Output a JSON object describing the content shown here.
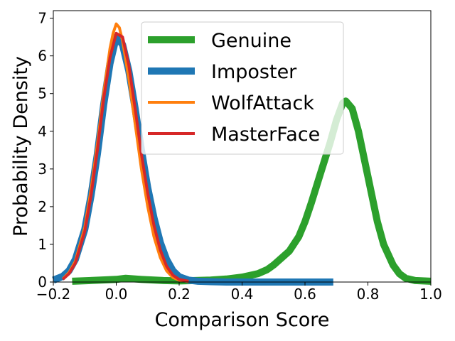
{
  "chart_data": {
    "type": "line",
    "xlabel": "Comparison Score",
    "ylabel": "Probability Density",
    "xlim": [
      -0.2,
      1.0
    ],
    "ylim": [
      0,
      7.2
    ],
    "xticks": [
      {
        "value": -0.2,
        "label": "−0.2"
      },
      {
        "value": 0.0,
        "label": "0.0"
      },
      {
        "value": 0.2,
        "label": "0.2"
      },
      {
        "value": 0.4,
        "label": "0.4"
      },
      {
        "value": 0.6,
        "label": "0.6"
      },
      {
        "value": 0.8,
        "label": "0.8"
      },
      {
        "value": 1.0,
        "label": "1.0"
      }
    ],
    "yticks": [
      {
        "value": 0,
        "label": "0"
      },
      {
        "value": 1,
        "label": "1"
      },
      {
        "value": 2,
        "label": "2"
      },
      {
        "value": 3,
        "label": "3"
      },
      {
        "value": 4,
        "label": "4"
      },
      {
        "value": 5,
        "label": "5"
      },
      {
        "value": 6,
        "label": "6"
      },
      {
        "value": 7,
        "label": "7"
      }
    ],
    "grid": false,
    "legend_position": "top-center",
    "series": [
      {
        "name": "Genuine",
        "color": "#2ca02c",
        "stroke": "thick",
        "x": [
          -0.14,
          -0.05,
          0.0,
          0.03,
          0.08,
          0.15,
          0.2,
          0.25,
          0.3,
          0.35,
          0.4,
          0.45,
          0.48,
          0.5,
          0.55,
          0.58,
          0.6,
          0.62,
          0.65,
          0.68,
          0.7,
          0.72,
          0.73,
          0.75,
          0.77,
          0.8,
          0.83,
          0.85,
          0.88,
          0.9,
          0.92,
          0.95,
          1.0
        ],
        "y": [
          0.02,
          0.05,
          0.07,
          0.1,
          0.07,
          0.04,
          0.03,
          0.04,
          0.05,
          0.08,
          0.13,
          0.22,
          0.33,
          0.45,
          0.82,
          1.2,
          1.6,
          2.1,
          2.9,
          3.7,
          4.3,
          4.75,
          4.8,
          4.6,
          4.0,
          2.8,
          1.6,
          1.0,
          0.45,
          0.22,
          0.1,
          0.04,
          0.02
        ]
      },
      {
        "name": "Imposter",
        "color": "#1f77b4",
        "stroke": "thick",
        "x": [
          -0.2,
          -0.17,
          -0.15,
          -0.13,
          -0.1,
          -0.08,
          -0.06,
          -0.04,
          -0.02,
          0.0,
          0.02,
          0.04,
          0.06,
          0.08,
          0.1,
          0.12,
          0.14,
          0.16,
          0.18,
          0.2,
          0.23,
          0.26,
          0.3,
          0.35,
          0.4,
          0.5,
          0.6,
          0.69
        ],
        "y": [
          0.05,
          0.15,
          0.3,
          0.6,
          1.4,
          2.3,
          3.4,
          4.7,
          5.8,
          6.5,
          6.3,
          5.6,
          4.6,
          3.5,
          2.5,
          1.7,
          1.05,
          0.6,
          0.3,
          0.14,
          0.05,
          0.02,
          0.01,
          0.0,
          0.0,
          0.0,
          0.0,
          0.0
        ]
      },
      {
        "name": "WolfAttack",
        "color": "#ff7f0e",
        "stroke": "thin",
        "x": [
          -0.17,
          -0.15,
          -0.13,
          -0.1,
          -0.08,
          -0.06,
          -0.04,
          -0.02,
          -0.01,
          0.0,
          0.01,
          0.02,
          0.04,
          0.06,
          0.08,
          0.1,
          0.12,
          0.14,
          0.16,
          0.18,
          0.2,
          0.23
        ],
        "y": [
          0.08,
          0.25,
          0.55,
          1.45,
          2.45,
          3.65,
          5.0,
          6.2,
          6.6,
          6.85,
          6.75,
          6.4,
          5.4,
          4.2,
          3.0,
          2.0,
          1.2,
          0.65,
          0.3,
          0.12,
          0.05,
          0.01
        ]
      },
      {
        "name": "MasterFace",
        "color": "#d62728",
        "stroke": "thin",
        "x": [
          -0.17,
          -0.15,
          -0.13,
          -0.1,
          -0.08,
          -0.06,
          -0.04,
          -0.02,
          0.0,
          0.02,
          0.04,
          0.06,
          0.08,
          0.1,
          0.12,
          0.14,
          0.16,
          0.18,
          0.2,
          0.23
        ],
        "y": [
          0.07,
          0.22,
          0.5,
          1.35,
          2.3,
          3.5,
          4.85,
          5.95,
          6.6,
          6.5,
          5.75,
          4.6,
          3.4,
          2.35,
          1.5,
          0.85,
          0.42,
          0.18,
          0.07,
          0.02
        ]
      }
    ]
  }
}
